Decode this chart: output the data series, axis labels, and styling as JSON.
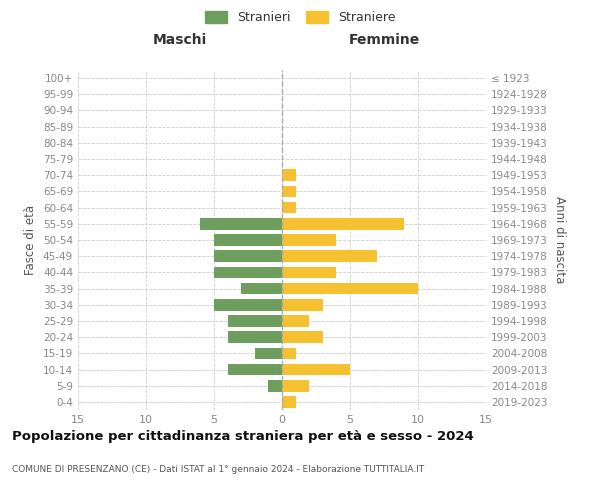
{
  "age_groups": [
    "0-4",
    "5-9",
    "10-14",
    "15-19",
    "20-24",
    "25-29",
    "30-34",
    "35-39",
    "40-44",
    "45-49",
    "50-54",
    "55-59",
    "60-64",
    "65-69",
    "70-74",
    "75-79",
    "80-84",
    "85-89",
    "90-94",
    "95-99",
    "100+"
  ],
  "birth_years": [
    "2019-2023",
    "2014-2018",
    "2009-2013",
    "2004-2008",
    "1999-2003",
    "1994-1998",
    "1989-1993",
    "1984-1988",
    "1979-1983",
    "1974-1978",
    "1969-1973",
    "1964-1968",
    "1959-1963",
    "1954-1958",
    "1949-1953",
    "1944-1948",
    "1939-1943",
    "1934-1938",
    "1929-1933",
    "1924-1928",
    "≤ 1923"
  ],
  "males": [
    0,
    1,
    4,
    2,
    4,
    4,
    5,
    3,
    5,
    5,
    5,
    6,
    0,
    0,
    0,
    0,
    0,
    0,
    0,
    0,
    0
  ],
  "females": [
    1,
    2,
    5,
    1,
    3,
    2,
    3,
    10,
    4,
    7,
    4,
    9,
    1,
    1,
    1,
    0,
    0,
    0,
    0,
    0,
    0
  ],
  "male_color": "#6d9e5e",
  "female_color": "#f5c131",
  "title": "Popolazione per cittadinanza straniera per età e sesso - 2024",
  "subtitle": "COMUNE DI PRESENZANO (CE) - Dati ISTAT al 1° gennaio 2024 - Elaborazione TUTTITALIA.IT",
  "xlabel_left": "Maschi",
  "xlabel_right": "Femmine",
  "ylabel_left": "Fasce di età",
  "ylabel_right": "Anni di nascita",
  "legend_male": "Stranieri",
  "legend_female": "Straniere",
  "xlim": 15,
  "background_color": "#ffffff",
  "grid_color": "#cccccc",
  "tick_label_color": "#888888"
}
